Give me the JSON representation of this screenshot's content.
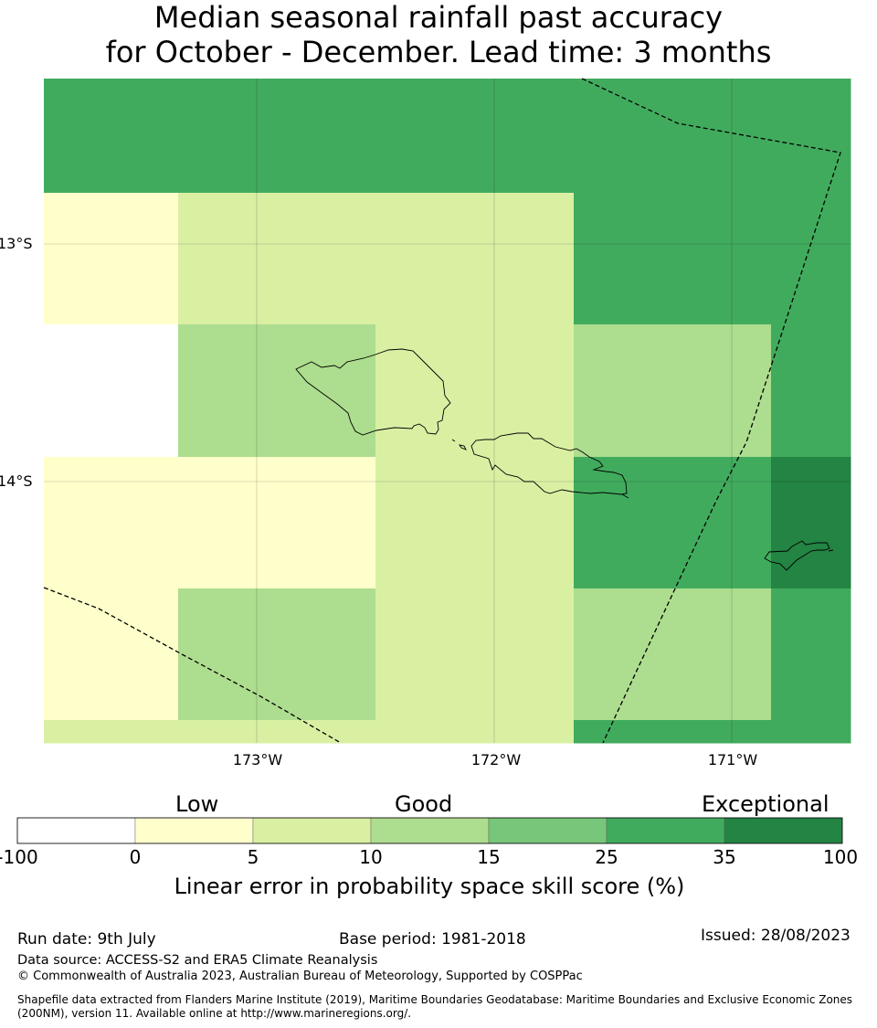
{
  "title": {
    "line1": "Median seasonal rainfall past accuracy",
    "line2": "for October - December. Lead time: 3 months"
  },
  "map": {
    "lat_labels": [
      "13°S",
      "14°S"
    ],
    "lon_labels": [
      "173°W",
      "172°W",
      "171°W"
    ],
    "grid": [
      [
        "25",
        "25",
        "25",
        "25",
        "25",
        "25",
        "25",
        "25"
      ],
      [
        "0",
        "5",
        "5",
        "5",
        "5",
        "25",
        "25",
        "25"
      ],
      [
        "-100",
        "10",
        "10",
        "5",
        "5",
        "10",
        "10",
        "25"
      ],
      [
        "0",
        "0",
        "0",
        "5",
        "5",
        "25",
        "25",
        "35"
      ],
      [
        "0",
        "10",
        "10",
        "5",
        "5",
        "10",
        "10",
        "25"
      ],
      [
        "5",
        "5",
        "5",
        "5",
        "5",
        "25",
        "25",
        "25"
      ]
    ]
  },
  "colorbar": {
    "category_labels": [
      "Low",
      "Good",
      "Exceptional"
    ],
    "ticks": [
      "-100",
      "0",
      "5",
      "10",
      "15",
      "25",
      "35",
      "100"
    ],
    "colors": [
      "#ffffff",
      "#ffffcc",
      "#d9f0a3",
      "#addd8e",
      "#78c679",
      "#41ab5d",
      "#238443"
    ],
    "label": "Linear error in probability space skill score (%)"
  },
  "footer": {
    "run_date": "Run date: 9th July",
    "base_period": "Base period: 1981-2018",
    "issued": "Issued: 28/08/2023",
    "data_source": "Data source: ACCESS-S2 and ERA5 Climate Reanalysis",
    "copyright": "© Commonwealth of Australia 2023, Australian Bureau of Meteorology, Supported by COSPPac",
    "shapefile": "Shapefile data extracted from Flanders Marine Institute (2019), Maritime Boundaries Geodatabase: Maritime Boundaries and Exclusive Economic Zones (200NM), version 11. Available online at http://www.marineregions.org/."
  }
}
